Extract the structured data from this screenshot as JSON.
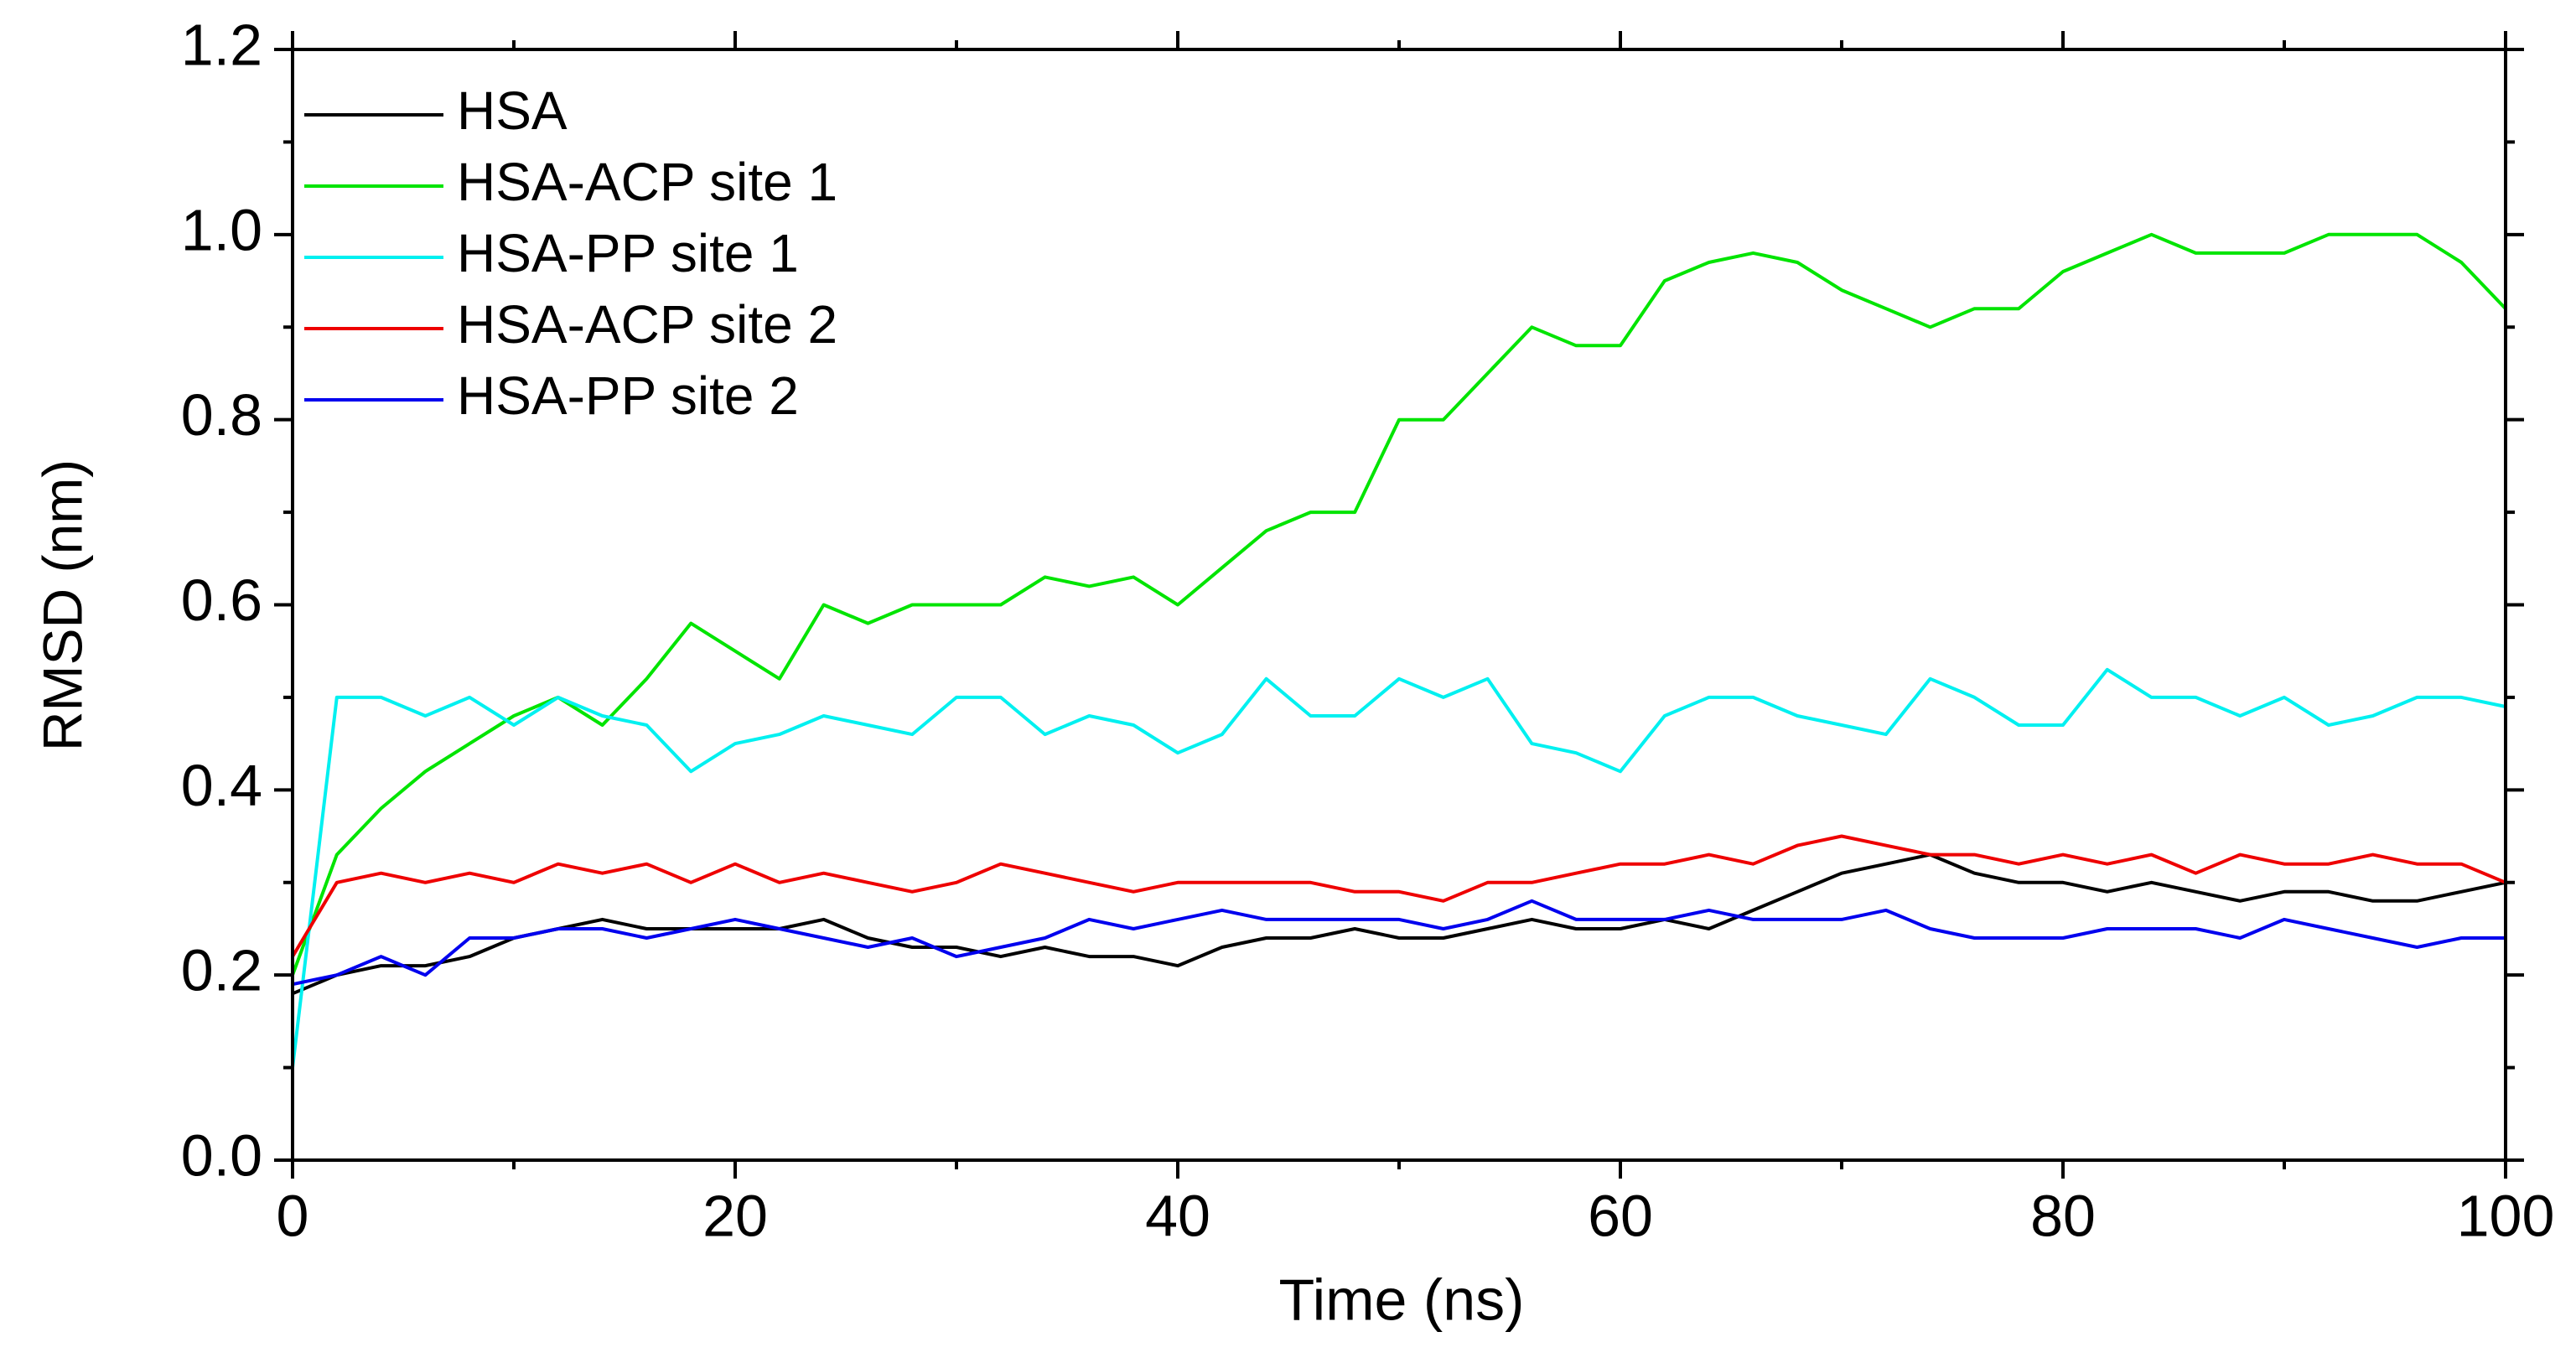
{
  "chart_data": {
    "type": "line",
    "xlabel": "Time (ns)",
    "ylabel": "RMSD (nm)",
    "x": [
      0,
      2,
      4,
      6,
      8,
      10,
      12,
      14,
      16,
      18,
      20,
      22,
      24,
      26,
      28,
      30,
      32,
      34,
      36,
      38,
      40,
      42,
      44,
      46,
      48,
      50,
      52,
      54,
      56,
      58,
      60,
      62,
      64,
      66,
      68,
      70,
      72,
      74,
      76,
      78,
      80,
      82,
      84,
      86,
      88,
      90,
      92,
      94,
      96,
      98,
      100
    ],
    "series": [
      {
        "name": "HSA",
        "color": "#000000",
        "values": [
          0.18,
          0.2,
          0.21,
          0.21,
          0.22,
          0.24,
          0.25,
          0.26,
          0.25,
          0.25,
          0.25,
          0.25,
          0.26,
          0.24,
          0.23,
          0.23,
          0.22,
          0.23,
          0.22,
          0.22,
          0.21,
          0.23,
          0.24,
          0.24,
          0.25,
          0.24,
          0.24,
          0.25,
          0.26,
          0.25,
          0.25,
          0.26,
          0.25,
          0.27,
          0.29,
          0.31,
          0.32,
          0.33,
          0.31,
          0.3,
          0.3,
          0.29,
          0.3,
          0.29,
          0.28,
          0.29,
          0.29,
          0.28,
          0.28,
          0.29,
          0.3
        ]
      },
      {
        "name": "HSA-ACP site 1",
        "color": "#00e400",
        "values": [
          0.2,
          0.33,
          0.38,
          0.42,
          0.45,
          0.48,
          0.5,
          0.47,
          0.52,
          0.58,
          0.55,
          0.52,
          0.6,
          0.58,
          0.6,
          0.6,
          0.6,
          0.63,
          0.62,
          0.63,
          0.6,
          0.64,
          0.68,
          0.7,
          0.7,
          0.8,
          0.8,
          0.85,
          0.9,
          0.88,
          0.88,
          0.95,
          0.97,
          0.98,
          0.97,
          0.94,
          0.92,
          0.9,
          0.92,
          0.92,
          0.96,
          0.98,
          1.0,
          0.98,
          0.98,
          0.98,
          1.0,
          1.0,
          1.0,
          0.97,
          0.92
        ]
      },
      {
        "name": "HSA-PP site 1",
        "color": "#00f0f0",
        "values": [
          0.1,
          0.5,
          0.5,
          0.48,
          0.5,
          0.47,
          0.5,
          0.48,
          0.47,
          0.42,
          0.45,
          0.46,
          0.48,
          0.47,
          0.46,
          0.5,
          0.5,
          0.46,
          0.48,
          0.47,
          0.44,
          0.46,
          0.52,
          0.48,
          0.48,
          0.52,
          0.5,
          0.52,
          0.45,
          0.44,
          0.42,
          0.48,
          0.5,
          0.5,
          0.48,
          0.47,
          0.46,
          0.52,
          0.5,
          0.47,
          0.47,
          0.53,
          0.5,
          0.5,
          0.48,
          0.5,
          0.47,
          0.48,
          0.5,
          0.5,
          0.49
        ]
      },
      {
        "name": "HSA-ACP site 2",
        "color": "#ee0000",
        "values": [
          0.22,
          0.3,
          0.31,
          0.3,
          0.31,
          0.3,
          0.32,
          0.31,
          0.32,
          0.3,
          0.32,
          0.3,
          0.31,
          0.3,
          0.29,
          0.3,
          0.32,
          0.31,
          0.3,
          0.29,
          0.3,
          0.3,
          0.3,
          0.3,
          0.29,
          0.29,
          0.28,
          0.3,
          0.3,
          0.31,
          0.32,
          0.32,
          0.33,
          0.32,
          0.34,
          0.35,
          0.34,
          0.33,
          0.33,
          0.32,
          0.33,
          0.32,
          0.33,
          0.31,
          0.33,
          0.32,
          0.32,
          0.33,
          0.32,
          0.32,
          0.3
        ]
      },
      {
        "name": "HSA-PP site 2",
        "color": "#0000ee",
        "values": [
          0.19,
          0.2,
          0.22,
          0.2,
          0.24,
          0.24,
          0.25,
          0.25,
          0.24,
          0.25,
          0.26,
          0.25,
          0.24,
          0.23,
          0.24,
          0.22,
          0.23,
          0.24,
          0.26,
          0.25,
          0.26,
          0.27,
          0.26,
          0.26,
          0.26,
          0.26,
          0.25,
          0.26,
          0.28,
          0.26,
          0.26,
          0.26,
          0.27,
          0.26,
          0.26,
          0.26,
          0.27,
          0.25,
          0.24,
          0.24,
          0.24,
          0.25,
          0.25,
          0.25,
          0.24,
          0.26,
          0.25,
          0.24,
          0.23,
          0.24,
          0.24
        ]
      }
    ],
    "xlim": [
      0,
      100
    ],
    "xticks": [
      0,
      20,
      40,
      60,
      80,
      100
    ],
    "ylim": [
      0,
      1.2
    ],
    "yticks": [
      {
        "value": 0,
        "label": "0.0"
      },
      0.2,
      0.4,
      0.6,
      0.8,
      {
        "value": 1,
        "label": "1.0"
      },
      1.2
    ],
    "grid": false,
    "legend": "upper left"
  }
}
